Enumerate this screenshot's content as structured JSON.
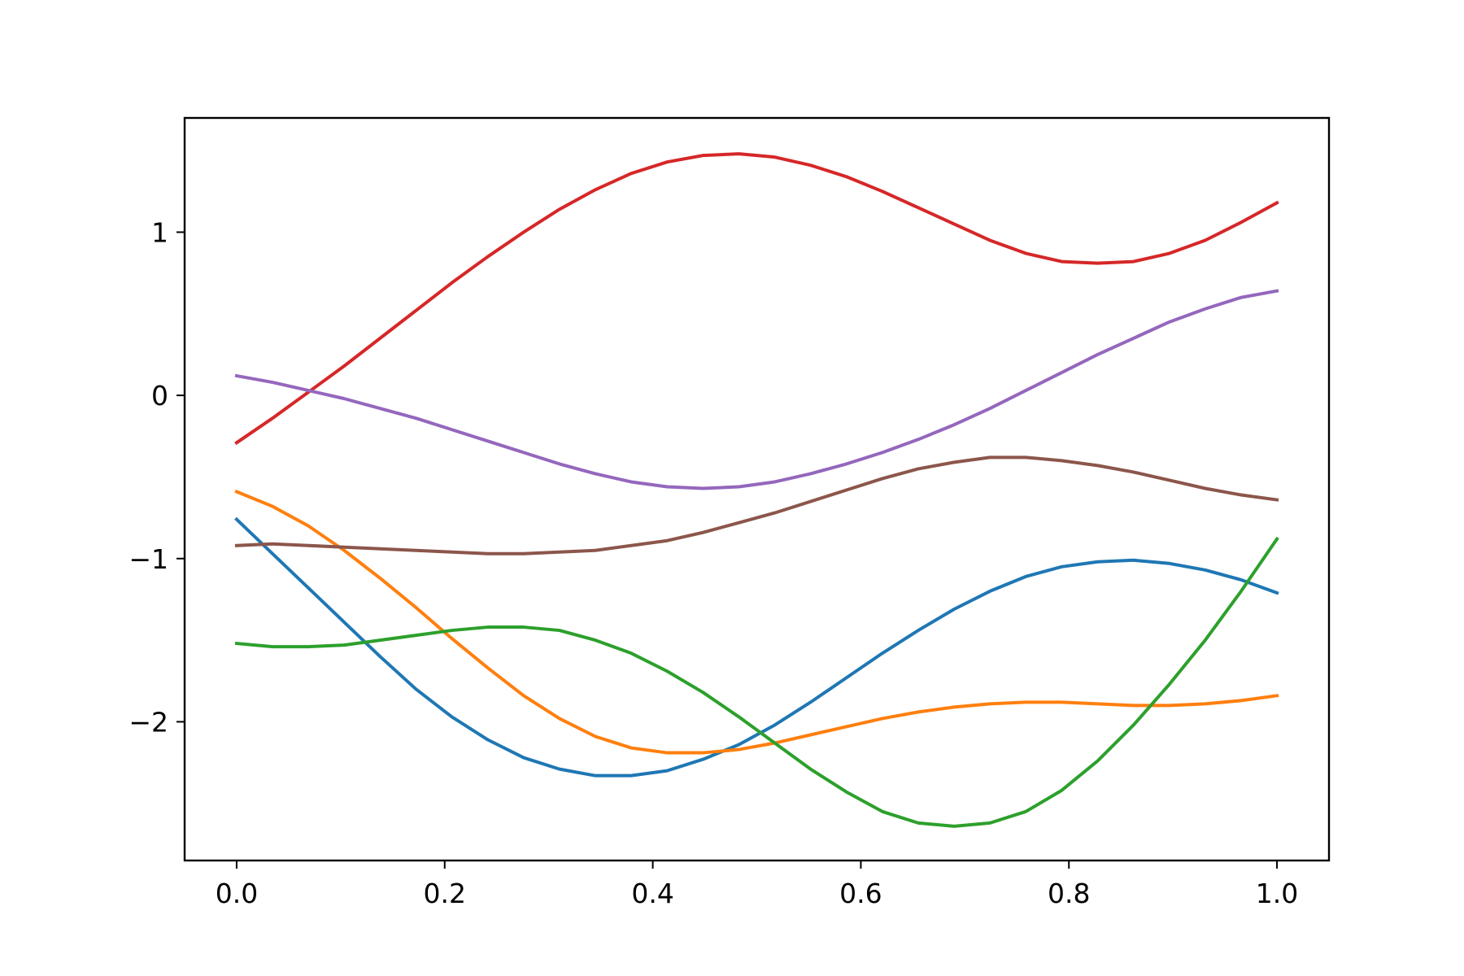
{
  "chart_data": {
    "type": "line",
    "title": "",
    "xlabel": "",
    "ylabel": "",
    "xlim": [
      -0.05,
      1.05
    ],
    "ylim": [
      -2.85,
      1.7
    ],
    "grid": false,
    "legend": "none",
    "x_ticks": [
      0.0,
      0.2,
      0.4,
      0.6,
      0.8,
      1.0
    ],
    "x_tick_labels": [
      "0.0",
      "0.2",
      "0.4",
      "0.6",
      "0.8",
      "1.0"
    ],
    "y_ticks": [
      -2,
      -1,
      0,
      1
    ],
    "y_tick_labels": [
      "−2",
      "−1",
      "0",
      "1"
    ],
    "x": [
      0.0,
      0.0345,
      0.069,
      0.1034,
      0.1379,
      0.1724,
      0.2069,
      0.2414,
      0.2759,
      0.3103,
      0.3448,
      0.3793,
      0.4138,
      0.4483,
      0.4828,
      0.5172,
      0.5517,
      0.5862,
      0.6207,
      0.6552,
      0.6897,
      0.7241,
      0.7586,
      0.7931,
      0.8276,
      0.8621,
      0.8966,
      0.931,
      0.9655,
      1.0
    ],
    "series": [
      {
        "color": "#1f77b4",
        "values": [
          -0.76,
          -0.97,
          -1.18,
          -1.39,
          -1.6,
          -1.8,
          -1.97,
          -2.11,
          -2.22,
          -2.29,
          -2.33,
          -2.33,
          -2.3,
          -2.23,
          -2.14,
          -2.02,
          -1.88,
          -1.73,
          -1.58,
          -1.44,
          -1.31,
          -1.2,
          -1.11,
          -1.05,
          -1.02,
          -1.01,
          -1.03,
          -1.07,
          -1.13,
          -1.21
        ]
      },
      {
        "color": "#ff7f0e",
        "values": [
          -0.59,
          -0.68,
          -0.8,
          -0.95,
          -1.12,
          -1.3,
          -1.49,
          -1.67,
          -1.84,
          -1.98,
          -2.09,
          -2.16,
          -2.19,
          -2.19,
          -2.17,
          -2.13,
          -2.08,
          -2.03,
          -1.98,
          -1.94,
          -1.91,
          -1.89,
          -1.88,
          -1.88,
          -1.89,
          -1.9,
          -1.9,
          -1.89,
          -1.87,
          -1.84
        ]
      },
      {
        "color": "#2ca02c",
        "values": [
          -1.52,
          -1.54,
          -1.54,
          -1.53,
          -1.5,
          -1.47,
          -1.44,
          -1.42,
          -1.42,
          -1.44,
          -1.5,
          -1.58,
          -1.69,
          -1.82,
          -1.97,
          -2.13,
          -2.29,
          -2.43,
          -2.55,
          -2.62,
          -2.64,
          -2.62,
          -2.55,
          -2.42,
          -2.24,
          -2.02,
          -1.77,
          -1.5,
          -1.2,
          -0.88
        ]
      },
      {
        "color": "#d62728",
        "values": [
          -0.29,
          -0.14,
          0.02,
          0.18,
          0.35,
          0.52,
          0.69,
          0.85,
          1.0,
          1.14,
          1.26,
          1.36,
          1.43,
          1.47,
          1.48,
          1.46,
          1.41,
          1.34,
          1.25,
          1.15,
          1.05,
          0.95,
          0.87,
          0.82,
          0.81,
          0.82,
          0.87,
          0.95,
          1.06,
          1.18
        ]
      },
      {
        "color": "#9467bd",
        "values": [
          0.12,
          0.08,
          0.03,
          -0.02,
          -0.08,
          -0.14,
          -0.21,
          -0.28,
          -0.35,
          -0.42,
          -0.48,
          -0.53,
          -0.56,
          -0.57,
          -0.56,
          -0.53,
          -0.48,
          -0.42,
          -0.35,
          -0.27,
          -0.18,
          -0.08,
          0.03,
          0.14,
          0.25,
          0.35,
          0.45,
          0.53,
          0.6,
          0.64
        ]
      },
      {
        "color": "#8c564b",
        "values": [
          -0.92,
          -0.91,
          -0.92,
          -0.93,
          -0.94,
          -0.95,
          -0.96,
          -0.97,
          -0.97,
          -0.96,
          -0.95,
          -0.92,
          -0.89,
          -0.84,
          -0.78,
          -0.72,
          -0.65,
          -0.58,
          -0.51,
          -0.45,
          -0.41,
          -0.38,
          -0.38,
          -0.4,
          -0.43,
          -0.47,
          -0.52,
          -0.57,
          -0.61,
          -0.64
        ]
      }
    ]
  }
}
